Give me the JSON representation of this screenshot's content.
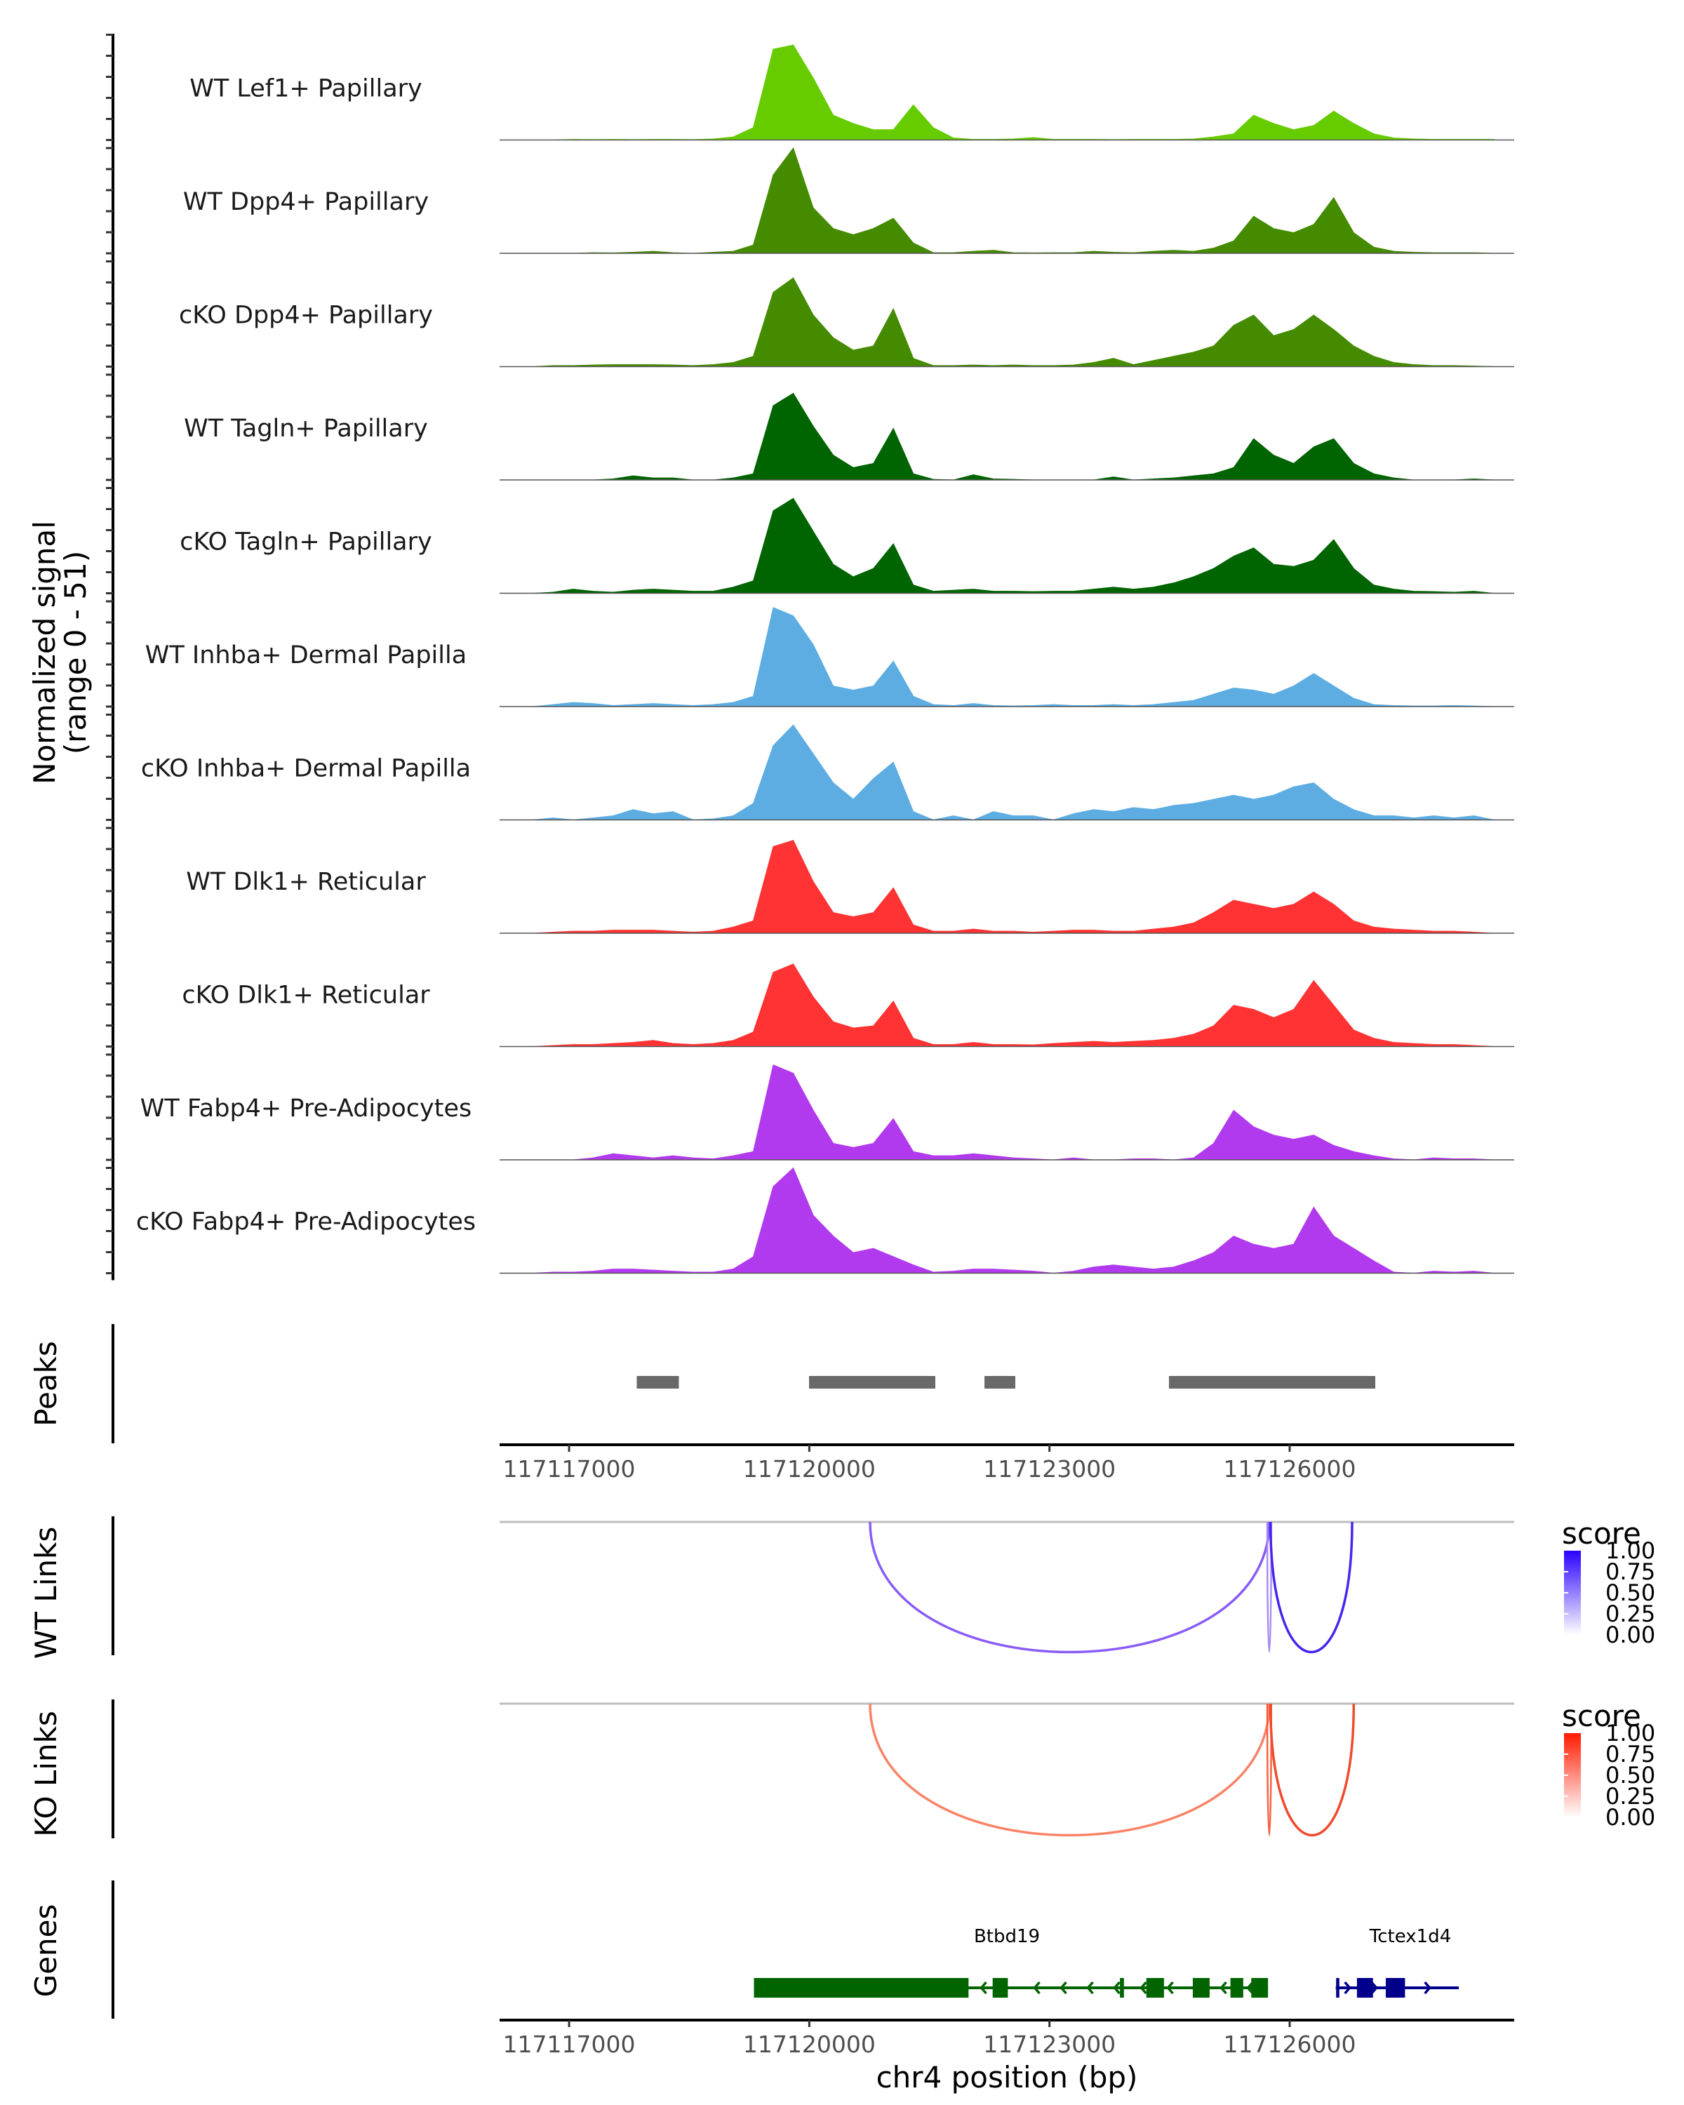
{
  "chart_data": {
    "type": "area",
    "title": "",
    "xlabel": "chr4 position (bp)",
    "ylabel": "Normalized signal\n(range 0 - 51)",
    "ylabel_lines": [
      "Normalized signal",
      "(range 0 - 51)"
    ],
    "region": {
      "chrom": "chr4",
      "start": 117116132,
      "end": 117128804
    },
    "ylim": [
      0,
      51
    ],
    "x_ticks": [
      117117000,
      117120000,
      117123000,
      117126000
    ],
    "x_tick_labels": [
      "117117000",
      "117120000",
      "117123000",
      "117126000"
    ],
    "grid": false,
    "bin_start": 117116300,
    "bin_size": 250,
    "tracks": [
      {
        "name": "WT Lef1+ Papillary",
        "color": "#66cc00",
        "values": [
          0,
          0,
          0,
          0.3,
          0.2,
          0.3,
          0.2,
          0.3,
          0.3,
          0.2,
          0.5,
          1.5,
          6,
          44,
          46,
          30,
          12,
          8,
          5,
          5,
          17,
          6,
          1,
          0.3,
          0.3,
          0.5,
          1.2,
          0.3,
          0.3,
          0.3,
          0.2,
          0.3,
          0.3,
          0.3,
          0.5,
          1.5,
          3,
          12,
          8,
          5,
          7,
          14,
          8,
          3,
          1,
          0.5,
          0.3,
          0.3,
          0.3,
          0.3
        ]
      },
      {
        "name": "WT Dpp4+ Papillary",
        "color": "#458b00",
        "values": [
          0,
          0,
          0,
          0,
          0.3,
          0.2,
          0.5,
          1,
          0.3,
          0,
          0.5,
          1,
          4,
          38,
          51,
          22,
          12,
          9,
          12,
          17,
          5,
          0.3,
          0.3,
          1,
          1.5,
          0.3,
          0.2,
          0.3,
          0.3,
          1,
          0.5,
          0.3,
          1,
          1.5,
          1,
          2.5,
          6,
          18,
          12,
          10,
          14,
          27,
          10,
          3,
          1,
          0.5,
          0.3,
          0.3,
          0.3,
          0
        ]
      },
      {
        "name": "cKO Dpp4+ Papillary",
        "color": "#458b00",
        "values": [
          0,
          0,
          0.5,
          0.5,
          0.8,
          1,
          1,
          1,
          0.8,
          0.5,
          1,
          2,
          5,
          36,
          43,
          25,
          14,
          8,
          10,
          28,
          4,
          0.5,
          0.5,
          0.8,
          0.5,
          0.8,
          0.5,
          0.5,
          0.8,
          2,
          4,
          1,
          3,
          5,
          7,
          10,
          20,
          25,
          15,
          18,
          25,
          18,
          10,
          5,
          2,
          1,
          0.5,
          0.5,
          0.3,
          0
        ]
      },
      {
        "name": "WT Tagln+ Papillary",
        "color": "#006400",
        "values": [
          0,
          0,
          0,
          0,
          0,
          0.5,
          2,
          1,
          1,
          0,
          0,
          1,
          3,
          36,
          42,
          26,
          12,
          6,
          8,
          25,
          3,
          0.3,
          0,
          2.5,
          0.5,
          0.3,
          0,
          0,
          0,
          0,
          1.5,
          0,
          0.5,
          1,
          2,
          3,
          6,
          20,
          12,
          8,
          16,
          20,
          8,
          3,
          1,
          0,
          0,
          0,
          0.5,
          0
        ]
      },
      {
        "name": "cKO Tagln+ Papillary",
        "color": "#006400",
        "values": [
          0,
          0,
          0.5,
          2,
          1,
          0.5,
          1.5,
          2,
          1.5,
          1,
          1,
          3,
          6,
          40,
          46,
          30,
          14,
          8,
          12,
          24,
          4,
          1,
          1.5,
          2,
          1,
          1,
          0.8,
          1,
          1,
          2,
          3,
          2,
          3,
          5,
          8,
          12,
          18,
          22,
          14,
          13,
          16,
          26,
          12,
          4,
          2,
          1,
          0.8,
          0.5,
          1,
          0
        ]
      },
      {
        "name": "WT Inhba+ Dermal Papilla",
        "color": "#5dade2",
        "values": [
          0,
          0,
          1,
          2,
          1.5,
          0.5,
          1,
          1.5,
          1,
          0.5,
          1,
          2,
          5,
          48,
          44,
          30,
          10,
          8,
          10,
          22,
          5,
          1,
          0.5,
          1.5,
          0.5,
          0.3,
          0.5,
          1,
          0.5,
          0.5,
          1,
          0.5,
          1,
          2,
          3,
          6,
          9,
          8,
          6,
          10,
          16,
          10,
          4,
          1,
          0.5,
          0.3,
          0.3,
          0.5,
          0.3,
          0
        ]
      },
      {
        "name": "cKO Inhba+ Dermal Papilla",
        "color": "#5dade2",
        "values": [
          0,
          0,
          1,
          0,
          1,
          2,
          5,
          3,
          4,
          0,
          0.5,
          2,
          8,
          36,
          46,
          32,
          18,
          10,
          20,
          28,
          4,
          0,
          2,
          0,
          4,
          2,
          2,
          0,
          3,
          5,
          4,
          6,
          5,
          7,
          8,
          10,
          12,
          10,
          12,
          16,
          18,
          10,
          5,
          2,
          2,
          1,
          2,
          1,
          2,
          0
        ]
      },
      {
        "name": "WT Dlk1+ Reticular",
        "color": "#ff3333",
        "values": [
          0,
          0,
          0.5,
          1,
          1,
          1.5,
          1.5,
          1.5,
          1,
          0.5,
          1,
          3,
          6,
          42,
          45,
          25,
          10,
          8,
          10,
          22,
          4,
          1,
          1,
          2,
          1,
          1,
          0.5,
          1,
          1.5,
          1.5,
          1,
          1,
          2,
          3,
          5,
          10,
          16,
          14,
          12,
          14,
          20,
          14,
          6,
          3,
          2,
          1.5,
          1,
          1,
          0.5,
          0
        ]
      },
      {
        "name": "cKO Dlk1+ Reticular",
        "color": "#ff3333",
        "values": [
          0,
          0,
          0.5,
          1,
          1,
          1.5,
          2,
          3,
          1.5,
          1,
          1.5,
          3,
          7,
          36,
          40,
          24,
          12,
          9,
          10,
          22,
          4,
          1,
          1,
          2,
          1,
          1,
          0.8,
          1.5,
          2,
          2.5,
          2,
          2.5,
          3,
          4,
          6,
          10,
          20,
          18,
          14,
          18,
          32,
          20,
          8,
          4,
          2,
          1.5,
          1,
          1,
          0.5,
          0
        ]
      },
      {
        "name": "WT Fabp4+ Pre-Adipocytes",
        "color": "#b23aee",
        "values": [
          0,
          0,
          0,
          0,
          1,
          3,
          2,
          1,
          2,
          1,
          0.5,
          2,
          4,
          46,
          42,
          24,
          8,
          6,
          8,
          20,
          4,
          2,
          2,
          3,
          2,
          1,
          0.5,
          0,
          1,
          0,
          0,
          0.5,
          0.5,
          0,
          1,
          8,
          24,
          16,
          12,
          10,
          12,
          7,
          4,
          2,
          0.5,
          0,
          1,
          0.5,
          0.5,
          0
        ]
      },
      {
        "name": "cKO Fabp4+ Pre-Adipocytes",
        "color": "#b23aee",
        "values": [
          0,
          0,
          0.5,
          0.5,
          1,
          2,
          2,
          1.5,
          1,
          0.5,
          0.5,
          2,
          8,
          42,
          51,
          28,
          18,
          10,
          12,
          8,
          4,
          0.5,
          1,
          2,
          2,
          1.5,
          1,
          0,
          1,
          3,
          4,
          3,
          2,
          3,
          6,
          10,
          18,
          14,
          12,
          14,
          32,
          18,
          12,
          6,
          0.5,
          0,
          1,
          0.5,
          1,
          0
        ]
      }
    ],
    "peaks": {
      "label": "Peaks",
      "color": "#696969",
      "regions": [
        [
          117117845,
          117118371
        ],
        [
          117119997,
          117121574
        ],
        [
          117122188,
          117122573
        ],
        [
          117124492,
          117127069
        ]
      ]
    },
    "links": [
      {
        "label": "WT Links",
        "color_high": "#2a00ff",
        "color_low": "#ffffff",
        "legend_title": "score",
        "legend_ticks": [
          "1.00",
          "0.75",
          "0.50",
          "0.25",
          "0.00"
        ],
        "arcs": [
          {
            "start": 117120759,
            "end": 117125745,
            "score": 0.65,
            "color": "#8a5cf6"
          },
          {
            "start": 117125720,
            "end": 117125770,
            "score": 0.45,
            "color": "#a98bf4"
          },
          {
            "start": 117125760,
            "end": 117126780,
            "score": 0.9,
            "color": "#4a24ee"
          }
        ]
      },
      {
        "label": "KO Links",
        "color_high": "#ff1a00",
        "color_low": "#ffffff",
        "legend_title": "score",
        "legend_ticks": [
          "1.00",
          "0.75",
          "0.50",
          "0.25",
          "0.00"
        ],
        "arcs": [
          {
            "start": 117120759,
            "end": 117125745,
            "score": 0.6,
            "color": "#fa8266"
          },
          {
            "start": 117125720,
            "end": 117125770,
            "score": 0.75,
            "color": "#f7603f"
          },
          {
            "start": 117125760,
            "end": 117126800,
            "score": 0.85,
            "color": "#f04a2c"
          }
        ]
      }
    ],
    "genes": {
      "label": "Genes",
      "items": [
        {
          "name": "Btbd19",
          "strand": "-",
          "start": 117119309,
          "end": 117125729,
          "color": "#006400",
          "exons": [
            [
              117119309,
              117121989
            ],
            [
              117122290,
              117122480
            ],
            [
              117123880,
              117123930
            ],
            [
              117124210,
              117124430
            ],
            [
              117124790,
              117125000
            ],
            [
              117125260,
              117125420
            ],
            [
              117125520,
              117125729
            ]
          ]
        },
        {
          "name": "Tctex1d4",
          "strand": "+",
          "start": 117126575,
          "end": 117128112,
          "color": "#00008b",
          "exons": [
            [
              117126580,
              117126620
            ],
            [
              117126840,
              117127040
            ],
            [
              117127200,
              117127440
            ]
          ]
        }
      ]
    },
    "track_tick_count": 6
  }
}
